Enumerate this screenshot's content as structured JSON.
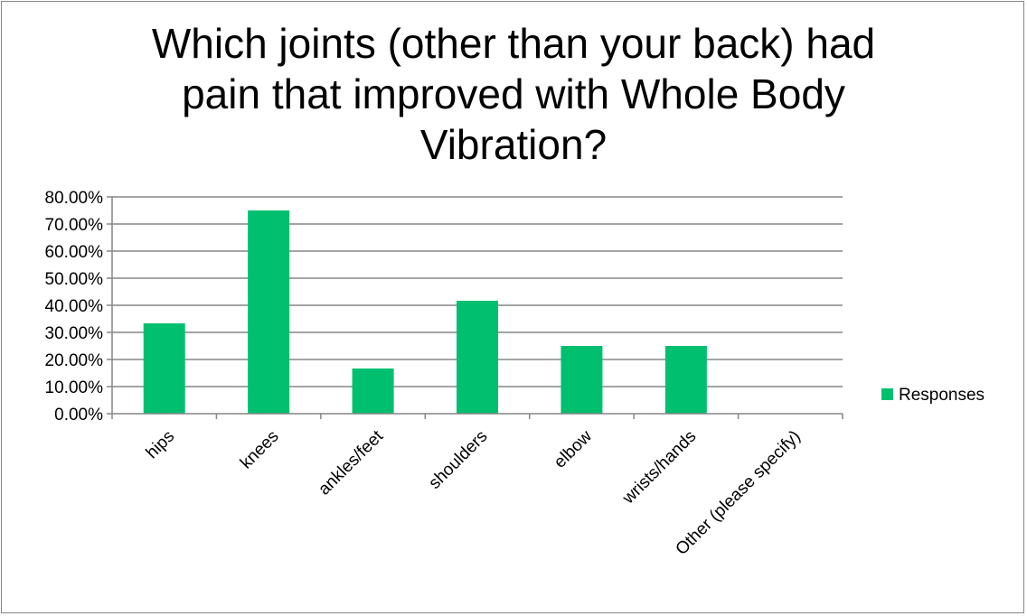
{
  "chart_data": {
    "type": "bar",
    "title_lines": [
      "Which joints (other than your back) had",
      "pain that improved with Whole Body",
      "Vibration?"
    ],
    "categories": [
      "hips",
      "knees",
      "ankles/feet",
      "shoulders",
      "elbow",
      "wrists/hands",
      "Other (please specify)"
    ],
    "series": [
      {
        "name": "Responses",
        "values": [
          33.33,
          75.0,
          16.67,
          41.67,
          25.0,
          25.0,
          0.0
        ]
      }
    ],
    "y_ticks": [
      "0.00%",
      "10.00%",
      "20.00%",
      "30.00%",
      "40.00%",
      "50.00%",
      "60.00%",
      "70.00%",
      "80.00%"
    ],
    "ylim": [
      0,
      80
    ],
    "grid": true,
    "legend_position": "right",
    "colors": {
      "bar": "#00bf6f",
      "grid": "#868686",
      "axis": "#868686"
    }
  }
}
